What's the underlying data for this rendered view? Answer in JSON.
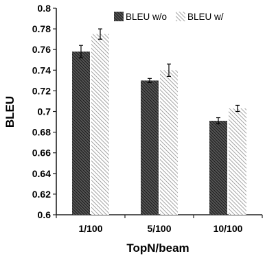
{
  "chart_data": {
    "type": "bar",
    "title": "",
    "xlabel": "TopN/beam",
    "ylabel": "BLEU",
    "categories": [
      "1/100",
      "5/100",
      "10/100"
    ],
    "ylim": [
      0.6,
      0.8
    ],
    "yticks": [
      "0.6",
      "0.62",
      "0.64",
      "0.66",
      "0.68",
      "0.7",
      "0.72",
      "0.74",
      "0.76",
      "0.78",
      "0.8"
    ],
    "grid": false,
    "legend_position": "top-right",
    "series": [
      {
        "name": "BLEU w/o",
        "pattern": "dense-diagonal-hatch",
        "color": "#2b2b2b",
        "values": [
          0.758,
          0.73,
          0.691
        ],
        "errors": [
          0.006,
          0.002,
          0.003
        ]
      },
      {
        "name": "BLEU w/",
        "pattern": "light-diagonal-hatch",
        "color": "#9a9a9a",
        "values": [
          0.775,
          0.74,
          0.703
        ],
        "errors": [
          0.005,
          0.006,
          0.003
        ]
      }
    ]
  }
}
